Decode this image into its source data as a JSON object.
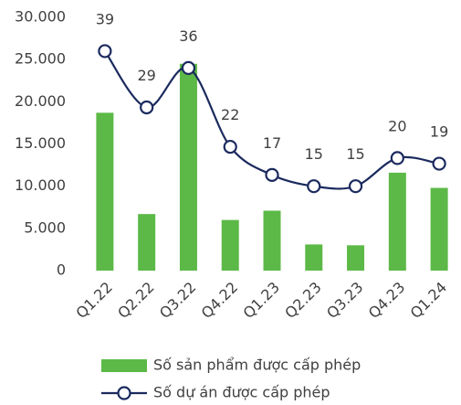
{
  "chart_data": {
    "type": "bar",
    "categories": [
      "Q1.22",
      "Q2.22",
      "Q3.22",
      "Q4.22",
      "Q1.23",
      "Q2.23",
      "Q3.23",
      "Q4.23",
      "Q1.24"
    ],
    "series": [
      {
        "name": "Số sản phẩm được cấp phép",
        "type": "bar",
        "color": "#5cb947",
        "values": [
          18700,
          6700,
          24500,
          6000,
          7100,
          3100,
          3000,
          11600,
          9800
        ]
      },
      {
        "name": "Số dự án được cấp phép",
        "type": "line",
        "axis": "y2",
        "smooth": true,
        "color": "#1b2a5e",
        "values": [
          39,
          29,
          36,
          22,
          17,
          15,
          15,
          20,
          19
        ]
      }
    ],
    "ylim": [
      0,
      30000
    ],
    "yticks": [
      0,
      {
        "value": 5000,
        "label": "5.000"
      },
      {
        "value": 10000,
        "label": "10.000"
      },
      {
        "value": 15000,
        "label": "15.000"
      },
      {
        "value": 20000,
        "label": "20.000"
      },
      {
        "value": 25000,
        "label": "25.000"
      },
      {
        "value": 30000,
        "label": "30.000"
      }
    ],
    "y2lim": [
      0,
      45
    ],
    "grid": false,
    "legend": "bottom"
  }
}
